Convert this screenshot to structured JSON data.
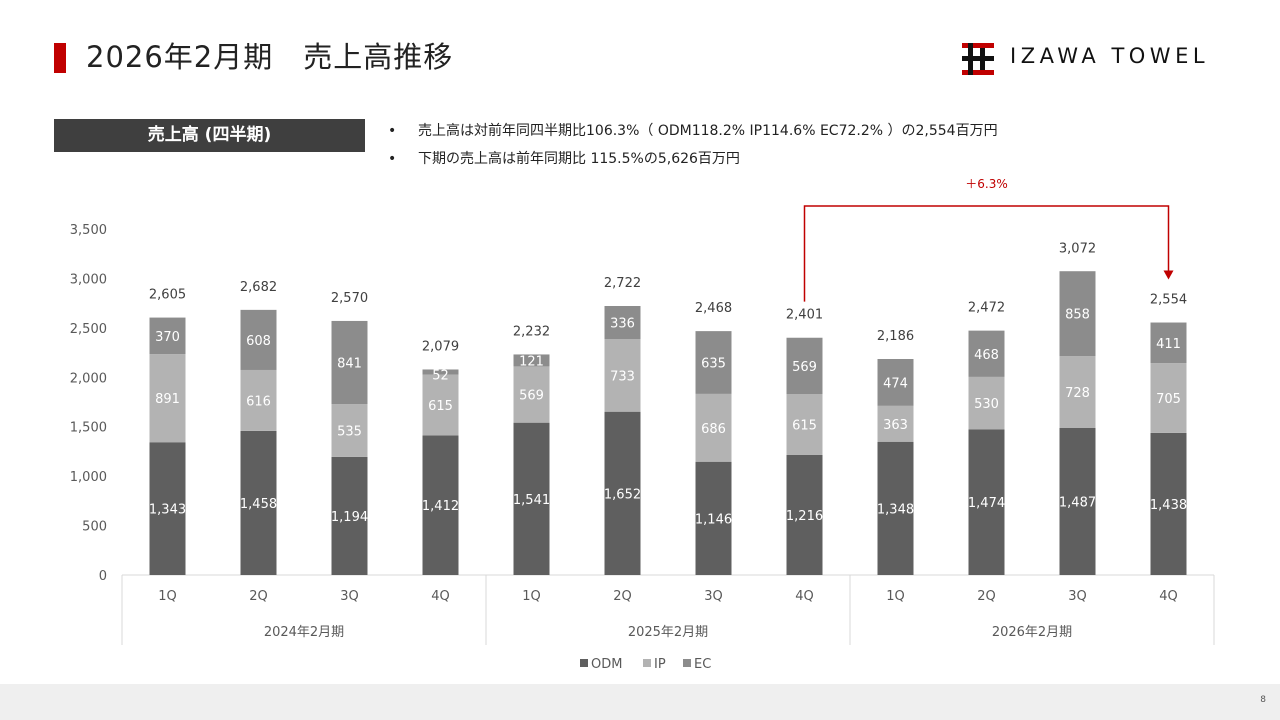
{
  "page": {
    "title": "2026年2月期　売上高推移",
    "logo_text": "IZAWA TOWEL",
    "section_label": "売上高 (四半期)",
    "bullets": [
      "売上高は対前年同四半期比106.3%（ ODM118.2% IP114.6% EC72.2% ）の2,554百万円",
      "下期の売上高は前年同期比 115.5%の5,626百万円"
    ],
    "page_number": "8"
  },
  "colors": {
    "accent": "#c00000",
    "label_bg": "#3f3f3f",
    "odm": "#5f5f5f",
    "ip": "#b3b3b3",
    "ec": "#8c8c8c",
    "axis_text": "#595959",
    "grid": "#d9d9d9",
    "arrow": "#c00000"
  },
  "chart_data": {
    "type": "bar",
    "stacked": true,
    "ylim": [
      0,
      3500
    ],
    "yticks": [
      "0",
      "500",
      "1,000",
      "1,500",
      "2,000",
      "2,500",
      "3,000",
      "3,500"
    ],
    "ytick_values": [
      0,
      500,
      1000,
      1500,
      2000,
      2500,
      3000,
      3500
    ],
    "categories": [
      "1Q",
      "2Q",
      "3Q",
      "4Q",
      "1Q",
      "2Q",
      "3Q",
      "4Q",
      "1Q",
      "2Q",
      "3Q",
      "4Q"
    ],
    "groups": [
      {
        "label": "2024年2月期",
        "count": 4
      },
      {
        "label": "2025年2月期",
        "count": 4
      },
      {
        "label": "2026年2月期",
        "count": 4
      }
    ],
    "series": [
      {
        "name": "ODM",
        "values": [
          1343,
          1458,
          1194,
          1412,
          1541,
          1652,
          1146,
          1216,
          1348,
          1474,
          1487,
          1438
        ],
        "labels": [
          "1,343",
          "1,458",
          "1,194",
          "1,412",
          "1,541",
          "1,652",
          "1,146",
          "1,216",
          "1,348",
          "1,474",
          "1,487",
          "1,438"
        ]
      },
      {
        "name": "IP",
        "values": [
          891,
          616,
          535,
          615,
          569,
          733,
          686,
          615,
          363,
          530,
          728,
          705
        ],
        "labels": [
          "891",
          "616",
          "535",
          "615",
          "569",
          "733",
          "686",
          "615",
          "363",
          "530",
          "728",
          "705"
        ]
      },
      {
        "name": "EC",
        "values": [
          370,
          608,
          841,
          52,
          121,
          336,
          635,
          569,
          474,
          468,
          858,
          411
        ],
        "labels": [
          "370",
          "608",
          "841",
          "52",
          "121",
          "336",
          "635",
          "569",
          "474",
          "468",
          "858",
          "411"
        ]
      }
    ],
    "totals": [
      2605,
      2682,
      2570,
      2079,
      2232,
      2722,
      2468,
      2401,
      2186,
      2472,
      3072,
      2554
    ],
    "total_labels": [
      "2,605",
      "2,682",
      "2,570",
      "2,079",
      "2,232",
      "2,722",
      "2,468",
      "2,401",
      "2,186",
      "2,472",
      "3,072",
      "2,554"
    ],
    "annotation": {
      "text": "＋6.3%",
      "from_index": 7,
      "to_index": 11
    },
    "legend": [
      "ODM",
      "IP",
      "EC"
    ]
  }
}
